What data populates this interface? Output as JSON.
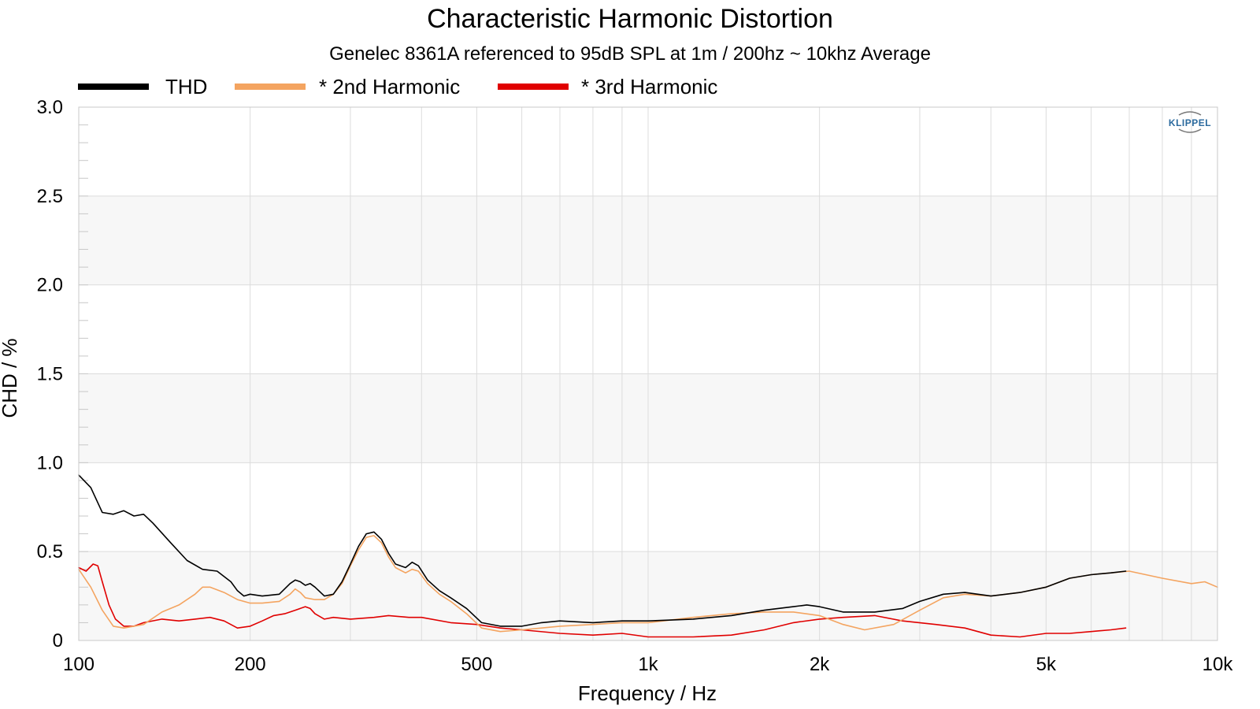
{
  "chart_data": {
    "type": "line",
    "title": "Characteristic Harmonic Distortion",
    "subtitle": "Genelec 8361A referenced to 95dB SPL at 1m / 200hz ~ 10khz Average",
    "xlabel": "Frequency / Hz",
    "ylabel": "CHD / %",
    "x_scale": "log",
    "xlim": [
      100,
      10000
    ],
    "ylim": [
      0,
      3.0
    ],
    "grid": true,
    "legend_position": "top-left",
    "logo": "KLIPPEL",
    "y_ticks": [
      {
        "value": 0,
        "label": "0"
      },
      {
        "value": 0.5,
        "label": "0.5"
      },
      {
        "value": 1.0,
        "label": "1.0"
      },
      {
        "value": 1.5,
        "label": "1.5"
      },
      {
        "value": 2.0,
        "label": "2.0"
      },
      {
        "value": 2.5,
        "label": "2.5"
      },
      {
        "value": 3.0,
        "label": "3.0"
      }
    ],
    "x_ticks": [
      {
        "value": 100,
        "label": "100"
      },
      {
        "value": 200,
        "label": "200"
      },
      {
        "value": 500,
        "label": "500"
      },
      {
        "value": 1000,
        "label": "1k"
      },
      {
        "value": 2000,
        "label": "2k"
      },
      {
        "value": 5000,
        "label": "5k"
      },
      {
        "value": 10000,
        "label": "10k"
      }
    ],
    "series": [
      {
        "name": "THD",
        "color": "#000000",
        "points": [
          [
            100,
            0.93
          ],
          [
            105,
            0.86
          ],
          [
            110,
            0.72
          ],
          [
            115,
            0.71
          ],
          [
            120,
            0.73
          ],
          [
            125,
            0.7
          ],
          [
            130,
            0.71
          ],
          [
            135,
            0.66
          ],
          [
            145,
            0.55
          ],
          [
            155,
            0.45
          ],
          [
            165,
            0.4
          ],
          [
            175,
            0.39
          ],
          [
            185,
            0.33
          ],
          [
            190,
            0.28
          ],
          [
            195,
            0.25
          ],
          [
            200,
            0.26
          ],
          [
            210,
            0.25
          ],
          [
            225,
            0.26
          ],
          [
            235,
            0.32
          ],
          [
            240,
            0.34
          ],
          [
            245,
            0.33
          ],
          [
            250,
            0.31
          ],
          [
            255,
            0.32
          ],
          [
            260,
            0.3
          ],
          [
            270,
            0.25
          ],
          [
            280,
            0.26
          ],
          [
            290,
            0.33
          ],
          [
            300,
            0.43
          ],
          [
            310,
            0.53
          ],
          [
            320,
            0.6
          ],
          [
            330,
            0.61
          ],
          [
            340,
            0.57
          ],
          [
            350,
            0.49
          ],
          [
            360,
            0.43
          ],
          [
            375,
            0.41
          ],
          [
            385,
            0.44
          ],
          [
            395,
            0.42
          ],
          [
            410,
            0.34
          ],
          [
            430,
            0.28
          ],
          [
            450,
            0.24
          ],
          [
            480,
            0.18
          ],
          [
            510,
            0.1
          ],
          [
            550,
            0.08
          ],
          [
            600,
            0.08
          ],
          [
            650,
            0.1
          ],
          [
            700,
            0.11
          ],
          [
            800,
            0.1
          ],
          [
            900,
            0.11
          ],
          [
            1000,
            0.11
          ],
          [
            1200,
            0.12
          ],
          [
            1400,
            0.14
          ],
          [
            1600,
            0.17
          ],
          [
            1800,
            0.19
          ],
          [
            1900,
            0.2
          ],
          [
            2000,
            0.19
          ],
          [
            2200,
            0.16
          ],
          [
            2500,
            0.16
          ],
          [
            2800,
            0.18
          ],
          [
            3000,
            0.22
          ],
          [
            3300,
            0.26
          ],
          [
            3600,
            0.27
          ],
          [
            4000,
            0.25
          ],
          [
            4500,
            0.27
          ],
          [
            5000,
            0.3
          ],
          [
            5500,
            0.35
          ],
          [
            6000,
            0.37
          ],
          [
            6500,
            0.38
          ],
          [
            6900,
            0.39
          ]
        ]
      },
      {
        "name": "* 2nd Harmonic",
        "color": "#f4a460",
        "points": [
          [
            100,
            0.4
          ],
          [
            105,
            0.3
          ],
          [
            110,
            0.17
          ],
          [
            115,
            0.08
          ],
          [
            120,
            0.07
          ],
          [
            125,
            0.08
          ],
          [
            130,
            0.09
          ],
          [
            140,
            0.16
          ],
          [
            150,
            0.2
          ],
          [
            160,
            0.26
          ],
          [
            165,
            0.3
          ],
          [
            170,
            0.3
          ],
          [
            180,
            0.27
          ],
          [
            190,
            0.23
          ],
          [
            200,
            0.21
          ],
          [
            210,
            0.21
          ],
          [
            225,
            0.22
          ],
          [
            235,
            0.26
          ],
          [
            240,
            0.29
          ],
          [
            245,
            0.27
          ],
          [
            250,
            0.24
          ],
          [
            260,
            0.23
          ],
          [
            270,
            0.23
          ],
          [
            280,
            0.26
          ],
          [
            290,
            0.32
          ],
          [
            300,
            0.42
          ],
          [
            310,
            0.51
          ],
          [
            320,
            0.58
          ],
          [
            330,
            0.59
          ],
          [
            340,
            0.55
          ],
          [
            350,
            0.47
          ],
          [
            360,
            0.41
          ],
          [
            375,
            0.38
          ],
          [
            385,
            0.4
          ],
          [
            395,
            0.39
          ],
          [
            410,
            0.32
          ],
          [
            430,
            0.26
          ],
          [
            450,
            0.22
          ],
          [
            480,
            0.15
          ],
          [
            510,
            0.07
          ],
          [
            550,
            0.05
          ],
          [
            600,
            0.06
          ],
          [
            650,
            0.07
          ],
          [
            700,
            0.08
          ],
          [
            800,
            0.09
          ],
          [
            900,
            0.1
          ],
          [
            1000,
            0.1
          ],
          [
            1200,
            0.13
          ],
          [
            1400,
            0.15
          ],
          [
            1600,
            0.16
          ],
          [
            1800,
            0.16
          ],
          [
            2000,
            0.14
          ],
          [
            2200,
            0.09
          ],
          [
            2400,
            0.06
          ],
          [
            2700,
            0.09
          ],
          [
            3000,
            0.17
          ],
          [
            3300,
            0.24
          ],
          [
            3600,
            0.26
          ],
          [
            4000,
            0.25
          ],
          [
            4500,
            0.27
          ],
          [
            5000,
            0.3
          ],
          [
            5500,
            0.35
          ],
          [
            6000,
            0.37
          ],
          [
            6500,
            0.38
          ],
          [
            7000,
            0.39
          ],
          [
            8000,
            0.35
          ],
          [
            9000,
            0.32
          ],
          [
            9500,
            0.33
          ],
          [
            10000,
            0.3
          ]
        ]
      },
      {
        "name": "* 3rd Harmonic",
        "color": "#e00000",
        "points": [
          [
            100,
            0.41
          ],
          [
            103,
            0.39
          ],
          [
            106,
            0.43
          ],
          [
            108,
            0.42
          ],
          [
            110,
            0.33
          ],
          [
            113,
            0.2
          ],
          [
            116,
            0.12
          ],
          [
            120,
            0.08
          ],
          [
            125,
            0.08
          ],
          [
            130,
            0.1
          ],
          [
            140,
            0.12
          ],
          [
            150,
            0.11
          ],
          [
            160,
            0.12
          ],
          [
            170,
            0.13
          ],
          [
            180,
            0.11
          ],
          [
            190,
            0.07
          ],
          [
            200,
            0.08
          ],
          [
            210,
            0.11
          ],
          [
            220,
            0.14
          ],
          [
            230,
            0.15
          ],
          [
            240,
            0.17
          ],
          [
            250,
            0.19
          ],
          [
            255,
            0.18
          ],
          [
            260,
            0.15
          ],
          [
            270,
            0.12
          ],
          [
            280,
            0.13
          ],
          [
            300,
            0.12
          ],
          [
            330,
            0.13
          ],
          [
            350,
            0.14
          ],
          [
            380,
            0.13
          ],
          [
            400,
            0.13
          ],
          [
            450,
            0.1
          ],
          [
            500,
            0.09
          ],
          [
            550,
            0.07
          ],
          [
            600,
            0.06
          ],
          [
            700,
            0.04
          ],
          [
            800,
            0.03
          ],
          [
            900,
            0.04
          ],
          [
            1000,
            0.02
          ],
          [
            1200,
            0.02
          ],
          [
            1400,
            0.03
          ],
          [
            1600,
            0.06
          ],
          [
            1800,
            0.1
          ],
          [
            2000,
            0.12
          ],
          [
            2200,
            0.13
          ],
          [
            2500,
            0.14
          ],
          [
            2800,
            0.11
          ],
          [
            3200,
            0.09
          ],
          [
            3600,
            0.07
          ],
          [
            4000,
            0.03
          ],
          [
            4500,
            0.02
          ],
          [
            5000,
            0.04
          ],
          [
            5500,
            0.04
          ],
          [
            6000,
            0.05
          ],
          [
            6500,
            0.06
          ],
          [
            6900,
            0.07
          ]
        ]
      }
    ]
  }
}
